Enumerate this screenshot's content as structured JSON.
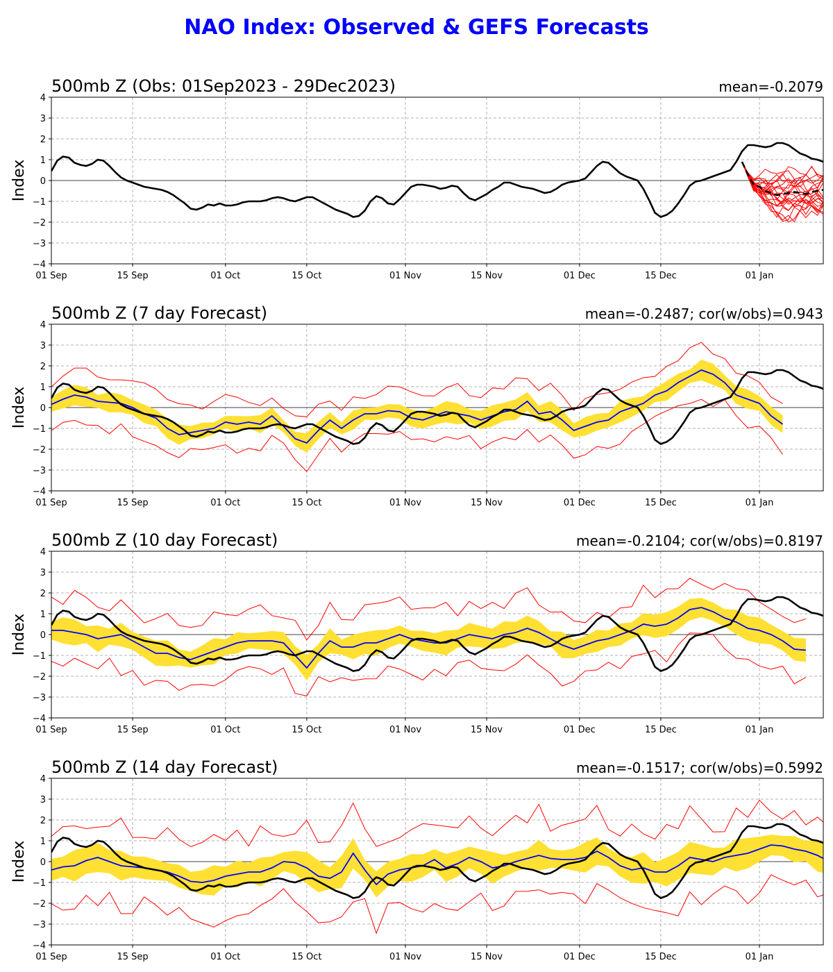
{
  "title": "NAO Index: Observed & GEFS Forecasts",
  "colors": {
    "title": "#0000ff",
    "observed": "#000000",
    "ensemble_mean": "#0000ff",
    "member": "#ff0000",
    "spread": "#ffe033",
    "grid": "#b0b0b0"
  },
  "shared_axes": {
    "ylabel": "Index",
    "ylim": [
      -4,
      4
    ],
    "yticks": [
      "4",
      "3",
      "2",
      "1",
      "0",
      "−1",
      "−2",
      "−3",
      "−4"
    ],
    "xlim": [
      "2023-09-01",
      "2024-01-12"
    ],
    "xticks": [
      "01 Sep",
      "15 Sep",
      "01 Oct",
      "15 Oct",
      "01 Nov",
      "15 Nov",
      "01 Dec",
      "15 Dec",
      "01 Jan"
    ],
    "grid": true
  },
  "chart_data": [
    {
      "type": "line",
      "title": "500mb Z (Obs: 01Sep2023 - 29Dec2023)",
      "stat": "mean=-0.2079",
      "observed": {
        "x_start": "2023-09-01",
        "x_end": "2023-12-29",
        "y": [
          0.45,
          0.95,
          1.15,
          1.1,
          0.85,
          0.75,
          0.7,
          0.8,
          1.0,
          0.95,
          0.7,
          0.4,
          0.15,
          0.0,
          -0.1,
          -0.2,
          -0.3,
          -0.35,
          -0.4,
          -0.45,
          -0.55,
          -0.7,
          -0.9,
          -1.1,
          -1.35,
          -1.4,
          -1.3,
          -1.15,
          -1.2,
          -1.1,
          -1.2,
          -1.2,
          -1.15,
          -1.05,
          -1.0,
          -1.0,
          -1.0,
          -0.95,
          -0.85,
          -0.8,
          -0.85,
          -0.95,
          -1.0,
          -0.9,
          -0.8,
          -0.8,
          -0.95,
          -1.1,
          -1.25,
          -1.4,
          -1.5,
          -1.6,
          -1.75,
          -1.7,
          -1.45,
          -1.0,
          -0.75,
          -0.85,
          -1.1,
          -1.15,
          -0.9,
          -0.6,
          -0.3,
          -0.2,
          -0.2,
          -0.25,
          -0.3,
          -0.4,
          -0.35,
          -0.25,
          -0.3,
          -0.6,
          -0.85,
          -0.95,
          -0.8,
          -0.65,
          -0.45,
          -0.3,
          -0.1,
          -0.1,
          -0.2,
          -0.3,
          -0.35,
          -0.4,
          -0.5,
          -0.6,
          -0.55,
          -0.4,
          -0.2,
          -0.1,
          -0.05,
          0.0,
          0.1,
          0.4,
          0.7,
          0.9,
          0.85,
          0.6,
          0.35,
          0.2,
          0.1,
          0.0,
          -0.4,
          -0.95,
          -1.55,
          -1.75,
          -1.65,
          -1.45,
          -1.1,
          -0.7,
          -0.25,
          -0.05,
          0.0,
          0.1,
          0.2,
          0.3,
          0.4,
          0.5,
          0.9,
          1.4,
          1.7,
          1.7,
          1.65,
          1.6,
          1.65,
          1.8,
          1.8,
          1.7,
          1.5,
          1.3,
          1.2,
          1.05,
          1.0,
          0.9
        ]
      },
      "ensemble_mean": {
        "x_start": "2023-12-29",
        "x_end": "2024-01-12",
        "y": [
          0.9,
          0.3,
          -0.2,
          -0.3,
          -0.5,
          -0.6,
          -0.7,
          -0.65,
          -0.6,
          -0.55,
          -0.6,
          -0.65,
          -0.55,
          -0.5,
          -0.45
        ]
      },
      "members": {
        "x_start": "2023-12-29",
        "count": 21
      }
    },
    {
      "type": "line",
      "title": "500mb Z (7 day Forecast)",
      "stat": "mean=-0.2487; cor(w/obs)=0.943",
      "observed": {
        "x_start": "2023-09-01",
        "x_end": "2023-12-29",
        "y": [
          0.45,
          0.95,
          1.15,
          1.1,
          0.85,
          0.75,
          0.7,
          0.8,
          1.0,
          0.95,
          0.7,
          0.4,
          0.15,
          0.0,
          -0.1,
          -0.2,
          -0.3,
          -0.35,
          -0.4,
          -0.45,
          -0.55,
          -0.7,
          -0.9,
          -1.1,
          -1.35,
          -1.4,
          -1.3,
          -1.15,
          -1.2,
          -1.1,
          -1.2,
          -1.2,
          -1.15,
          -1.05,
          -1.0,
          -1.0,
          -1.0,
          -0.95,
          -0.85,
          -0.8,
          -0.85,
          -0.95,
          -1.0,
          -0.9,
          -0.8,
          -0.8,
          -0.95,
          -1.1,
          -1.25,
          -1.4,
          -1.5,
          -1.6,
          -1.75,
          -1.7,
          -1.45,
          -1.0,
          -0.75,
          -0.85,
          -1.1,
          -1.15,
          -0.9,
          -0.6,
          -0.3,
          -0.2,
          -0.2,
          -0.25,
          -0.3,
          -0.4,
          -0.35,
          -0.25,
          -0.3,
          -0.6,
          -0.85,
          -0.95,
          -0.8,
          -0.65,
          -0.45,
          -0.3,
          -0.1,
          -0.1,
          -0.2,
          -0.3,
          -0.35,
          -0.4,
          -0.5,
          -0.6,
          -0.55,
          -0.4,
          -0.2,
          -0.1,
          -0.05,
          0.0,
          0.1,
          0.4,
          0.7,
          0.9,
          0.85,
          0.6,
          0.35,
          0.2,
          0.1,
          0.0,
          -0.4,
          -0.95,
          -1.55,
          -1.75,
          -1.65,
          -1.45,
          -1.1,
          -0.7,
          -0.25,
          -0.05,
          0.0,
          0.1,
          0.2,
          0.3,
          0.4,
          0.5,
          0.9,
          1.4,
          1.7,
          1.7,
          1.65,
          1.6,
          1.65,
          1.8,
          1.8,
          1.7,
          1.5,
          1.3,
          1.2,
          1.05,
          1.0,
          0.9
        ]
      },
      "ensemble_mean": {
        "x_start": "2023-09-01",
        "x_end": "2024-01-05",
        "step_days": 2,
        "y": [
          0.15,
          0.4,
          0.6,
          0.5,
          0.3,
          0.25,
          0.2,
          0.0,
          -0.3,
          -0.5,
          -1.0,
          -1.3,
          -1.2,
          -1.1,
          -1.0,
          -0.7,
          -0.8,
          -0.7,
          -0.8,
          -0.4,
          -0.9,
          -1.5,
          -1.7,
          -1.1,
          -0.6,
          -1.0,
          -0.6,
          -0.3,
          -0.3,
          -0.15,
          -0.2,
          -0.5,
          -0.6,
          -0.4,
          -0.2,
          -0.3,
          -0.4,
          -0.6,
          -0.4,
          -0.2,
          -0.1,
          0.3,
          -0.3,
          -0.2,
          -0.6,
          -1.1,
          -0.9,
          -0.7,
          -0.6,
          -0.2,
          0.0,
          0.2,
          0.6,
          0.8,
          1.2,
          1.5,
          1.8,
          1.6,
          1.2,
          0.6,
          0.4,
          0.2,
          -0.4,
          -0.8
        ]
      },
      "spread_halfwidth": 0.4,
      "envelope_halfwidth": 0.75
    },
    {
      "type": "line",
      "title": "500mb Z (10 day Forecast)",
      "stat": "mean=-0.2104; cor(w/obs)=0.8197",
      "observed": {
        "x_start": "2023-09-01",
        "x_end": "2023-12-29",
        "y": [
          0.45,
          0.95,
          1.15,
          1.1,
          0.85,
          0.75,
          0.7,
          0.8,
          1.0,
          0.95,
          0.7,
          0.4,
          0.15,
          0.0,
          -0.1,
          -0.2,
          -0.3,
          -0.35,
          -0.4,
          -0.45,
          -0.55,
          -0.7,
          -0.9,
          -1.1,
          -1.35,
          -1.4,
          -1.3,
          -1.15,
          -1.2,
          -1.1,
          -1.2,
          -1.2,
          -1.15,
          -1.05,
          -1.0,
          -1.0,
          -1.0,
          -0.95,
          -0.85,
          -0.8,
          -0.85,
          -0.95,
          -1.0,
          -0.9,
          -0.8,
          -0.8,
          -0.95,
          -1.1,
          -1.25,
          -1.4,
          -1.5,
          -1.6,
          -1.75,
          -1.7,
          -1.45,
          -1.0,
          -0.75,
          -0.85,
          -1.1,
          -1.15,
          -0.9,
          -0.6,
          -0.3,
          -0.2,
          -0.2,
          -0.25,
          -0.3,
          -0.4,
          -0.35,
          -0.25,
          -0.3,
          -0.6,
          -0.85,
          -0.95,
          -0.8,
          -0.65,
          -0.45,
          -0.3,
          -0.1,
          -0.1,
          -0.2,
          -0.3,
          -0.35,
          -0.4,
          -0.5,
          -0.6,
          -0.55,
          -0.4,
          -0.2,
          -0.1,
          -0.05,
          0.0,
          0.1,
          0.4,
          0.7,
          0.9,
          0.85,
          0.6,
          0.35,
          0.2,
          0.1,
          0.0,
          -0.4,
          -0.95,
          -1.55,
          -1.75,
          -1.65,
          -1.45,
          -1.1,
          -0.7,
          -0.25,
          -0.05,
          0.0,
          0.1,
          0.2,
          0.3,
          0.4,
          0.5,
          0.9,
          1.4,
          1.7,
          1.7,
          1.65,
          1.6,
          1.65,
          1.8,
          1.8,
          1.7,
          1.5,
          1.3,
          1.2,
          1.05,
          1.0,
          0.9
        ]
      },
      "ensemble_mean": {
        "x_start": "2023-09-01",
        "x_end": "2024-01-08",
        "step_days": 2,
        "y": [
          0.2,
          0.2,
          0.1,
          0.0,
          -0.2,
          -0.1,
          0.0,
          -0.3,
          -0.6,
          -0.9,
          -0.9,
          -1.1,
          -1.2,
          -1.0,
          -0.8,
          -0.6,
          -0.4,
          -0.3,
          -0.3,
          -0.3,
          -0.4,
          -1.0,
          -1.6,
          -0.9,
          -0.3,
          -0.6,
          -0.6,
          -0.4,
          -0.4,
          -0.2,
          0.0,
          -0.2,
          -0.3,
          -0.4,
          -0.4,
          -0.2,
          0.0,
          -0.1,
          -0.2,
          0.0,
          0.1,
          0.3,
          0.1,
          -0.2,
          -0.5,
          -0.7,
          -0.5,
          -0.3,
          -0.2,
          0.0,
          0.2,
          0.5,
          0.4,
          0.5,
          0.8,
          1.2,
          1.3,
          1.1,
          0.8,
          0.6,
          0.3,
          0.2,
          0.0,
          -0.3,
          -0.7,
          -0.75
        ]
      },
      "spread_halfwidth": 0.5,
      "envelope_halfwidth": 1.0
    },
    {
      "type": "line",
      "title": "500mb Z (14 day Forecast)",
      "stat": "mean=-0.1517; cor(w/obs)=0.5992",
      "observed": {
        "x_start": "2023-09-01",
        "x_end": "2023-12-29",
        "y": [
          0.45,
          0.95,
          1.15,
          1.1,
          0.85,
          0.75,
          0.7,
          0.8,
          1.0,
          0.95,
          0.7,
          0.4,
          0.15,
          0.0,
          -0.1,
          -0.2,
          -0.3,
          -0.35,
          -0.4,
          -0.45,
          -0.55,
          -0.7,
          -0.9,
          -1.1,
          -1.35,
          -1.4,
          -1.3,
          -1.15,
          -1.2,
          -1.1,
          -1.2,
          -1.2,
          -1.15,
          -1.05,
          -1.0,
          -1.0,
          -1.0,
          -0.95,
          -0.85,
          -0.8,
          -0.85,
          -0.95,
          -1.0,
          -0.9,
          -0.8,
          -0.8,
          -0.95,
          -1.1,
          -1.25,
          -1.4,
          -1.5,
          -1.6,
          -1.75,
          -1.7,
          -1.45,
          -1.0,
          -0.75,
          -0.85,
          -1.1,
          -1.15,
          -0.9,
          -0.6,
          -0.3,
          -0.2,
          -0.2,
          -0.25,
          -0.3,
          -0.4,
          -0.35,
          -0.25,
          -0.3,
          -0.6,
          -0.85,
          -0.95,
          -0.8,
          -0.65,
          -0.45,
          -0.3,
          -0.1,
          -0.1,
          -0.2,
          -0.3,
          -0.35,
          -0.4,
          -0.5,
          -0.6,
          -0.55,
          -0.4,
          -0.2,
          -0.1,
          -0.05,
          0.0,
          0.1,
          0.4,
          0.7,
          0.9,
          0.85,
          0.6,
          0.35,
          0.2,
          0.1,
          0.0,
          -0.4,
          -0.95,
          -1.55,
          -1.75,
          -1.65,
          -1.45,
          -1.1,
          -0.7,
          -0.25,
          -0.05,
          0.0,
          0.1,
          0.2,
          0.3,
          0.4,
          0.5,
          0.9,
          1.4,
          1.7,
          1.7,
          1.65,
          1.6,
          1.65,
          1.8,
          1.8,
          1.7,
          1.5,
          1.3,
          1.2,
          1.05,
          1.0,
          0.9
        ]
      },
      "ensemble_mean": {
        "x_start": "2023-09-01",
        "x_end": "2024-01-12",
        "step_days": 2,
        "y": [
          -0.4,
          -0.25,
          -0.2,
          0.05,
          0.2,
          0.0,
          -0.2,
          -0.25,
          -0.3,
          -0.4,
          -0.5,
          -0.7,
          -0.95,
          -1.0,
          -0.9,
          -0.7,
          -0.6,
          -0.5,
          -0.5,
          -0.3,
          0.0,
          -0.05,
          -0.3,
          -0.7,
          -0.8,
          -0.5,
          0.4,
          -0.4,
          -1.1,
          -0.6,
          -0.4,
          -0.3,
          -0.2,
          0.1,
          -0.3,
          -0.1,
          0.2,
          0.0,
          -0.3,
          -0.2,
          0.0,
          0.15,
          0.3,
          0.15,
          0.1,
          0.1,
          0.2,
          0.5,
          0.2,
          -0.2,
          -0.4,
          -0.3,
          -0.5,
          -0.5,
          -0.2,
          0.2,
          0.1,
          0.0,
          0.2,
          0.3,
          0.4,
          0.6,
          0.8,
          0.75,
          0.6,
          0.5,
          0.3,
          0.0,
          -0.3,
          -0.5,
          -0.75
        ]
      },
      "spread_halfwidth": 0.6,
      "envelope_halfwidth": 1.25
    }
  ]
}
